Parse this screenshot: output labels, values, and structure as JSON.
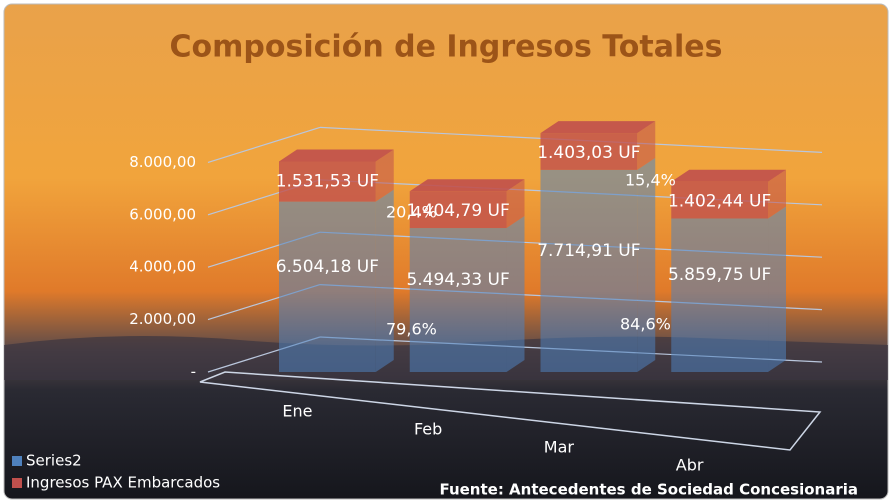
{
  "chart_data": {
    "type": "bar3d_stacked",
    "title": "Composición de Ingresos Totales",
    "source": "Fuente: Antecedentes de Sociedad Concesionaria",
    "categories": [
      "Ene",
      "Feb",
      "Mar",
      "Abr"
    ],
    "series": [
      {
        "name": "Series2",
        "color": "#4f81bd",
        "values": [
          6504.18,
          5494.33,
          7714.91,
          5859.75
        ],
        "value_labels": [
          "6.504,18 UF",
          "5.494,33 UF",
          "7.714,91 UF",
          "5.859,75 UF"
        ]
      },
      {
        "name": "Ingresos PAX Embarcados",
        "color": "#c0504d",
        "values": [
          1531.53,
          1404.79,
          1403.03,
          1402.44
        ],
        "value_labels": [
          "1.531,53 UF",
          "1.404,79 UF",
          "1.403,03 UF",
          "1.402,44 UF"
        ]
      }
    ],
    "annotations": [
      "79,6%",
      "20,4%",
      "84,6%",
      "15,4%"
    ],
    "ylim": [
      0,
      10000
    ],
    "yticks": [
      {
        "value": 0,
        "label": "-"
      },
      {
        "value": 2000,
        "label": "2.000,00"
      },
      {
        "value": 4000,
        "label": "4.000,00"
      },
      {
        "value": 6000,
        "label": "6.000,00"
      },
      {
        "value": 8000,
        "label": "8.000,00"
      }
    ],
    "grid": true,
    "legend": "bottom-left"
  }
}
